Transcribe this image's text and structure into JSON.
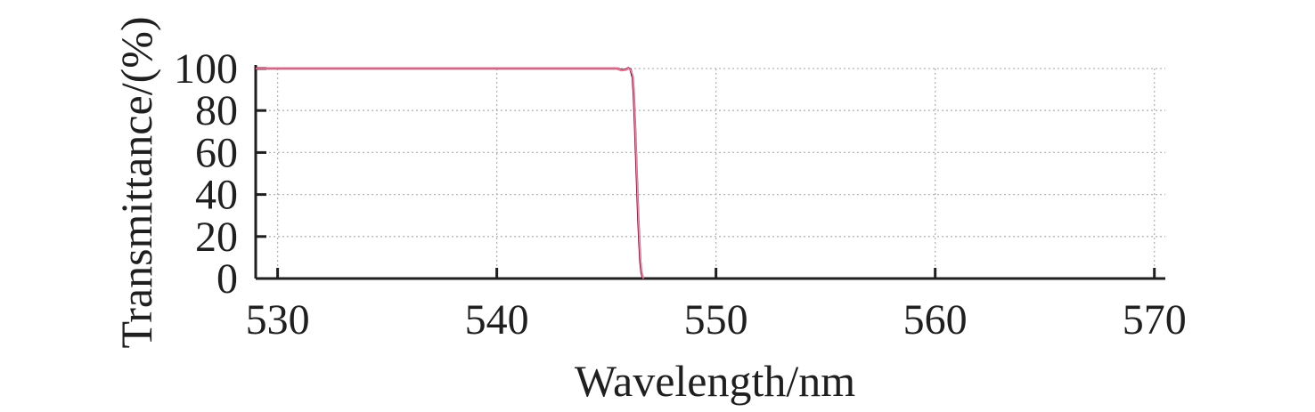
{
  "chart_data": {
    "type": "line",
    "title": "",
    "xlabel": "Wavelength/nm",
    "ylabel": "Transmittance/(%)",
    "xlim": [
      529,
      570.5
    ],
    "ylim": [
      0,
      100
    ],
    "xticks": [
      530,
      540,
      550,
      560,
      570
    ],
    "yticks": [
      0,
      20,
      40,
      60,
      80,
      100
    ],
    "grid": true,
    "legend": "none",
    "series": [
      {
        "color": "#c0003c",
        "x": [
          529,
          532,
          535,
          538,
          541,
          544,
          545.5,
          545.7,
          545.9,
          546.0,
          546.1,
          546.2,
          546.25,
          546.3,
          546.35,
          546.4,
          546.45,
          546.5,
          546.55,
          546.6,
          546.65,
          546.7
        ],
        "y": [
          100,
          100,
          100,
          100,
          100,
          100,
          100,
          99.2,
          99.5,
          100.2,
          99.5,
          96,
          88,
          75,
          60,
          45,
          30,
          18,
          8,
          3,
          0.8,
          0
        ]
      },
      {
        "color": "#1a1a1a",
        "x": [
          529,
          532,
          535,
          538,
          541,
          544,
          545.5,
          545.7,
          545.9,
          546.0,
          546.1,
          546.2,
          546.25,
          546.3,
          546.35,
          546.4,
          546.45,
          546.5,
          546.55,
          546.6,
          546.65,
          546.7
        ],
        "y": [
          100,
          100,
          100,
          100,
          100,
          100,
          100,
          99.3,
          99.6,
          100.2,
          99.6,
          95,
          86,
          73,
          58,
          43,
          28,
          16,
          7,
          2.5,
          0.6,
          0
        ]
      },
      {
        "color": "#f08aa8",
        "x": [
          529,
          532,
          535,
          538,
          541,
          544,
          545.5,
          545.7,
          545.9,
          546.0,
          546.1,
          546.2,
          546.25,
          546.3,
          546.35,
          546.4,
          546.45,
          546.5,
          546.55,
          546.6,
          546.65,
          546.7
        ],
        "y": [
          100,
          100,
          100,
          100,
          100,
          100,
          100,
          99.1,
          99.4,
          100.1,
          99.4,
          97,
          90,
          78,
          63,
          48,
          33,
          20,
          10,
          4,
          1.2,
          0
        ]
      }
    ]
  }
}
